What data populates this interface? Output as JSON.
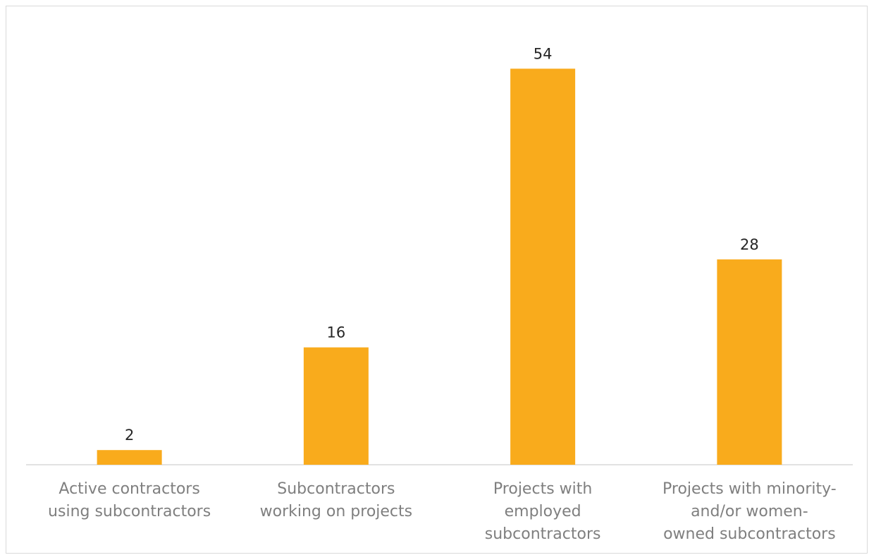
{
  "chart_data": {
    "type": "bar",
    "categories": [
      [
        "Active contractors",
        "using subcontractors"
      ],
      [
        "Subcontractors",
        "working on projects"
      ],
      [
        "Projects with",
        "employed",
        "subcontractors"
      ],
      [
        "Projects with minority-",
        "and/or women-",
        "owned subcontractors"
      ]
    ],
    "values": [
      2,
      16,
      54,
      28
    ],
    "data_labels": [
      "2",
      "16",
      "54",
      "28"
    ],
    "ylim": [
      0,
      58
    ],
    "grid": false,
    "legend": "none",
    "bar_color": "#F9AB1C",
    "axis_color": "#d9d9d9"
  }
}
